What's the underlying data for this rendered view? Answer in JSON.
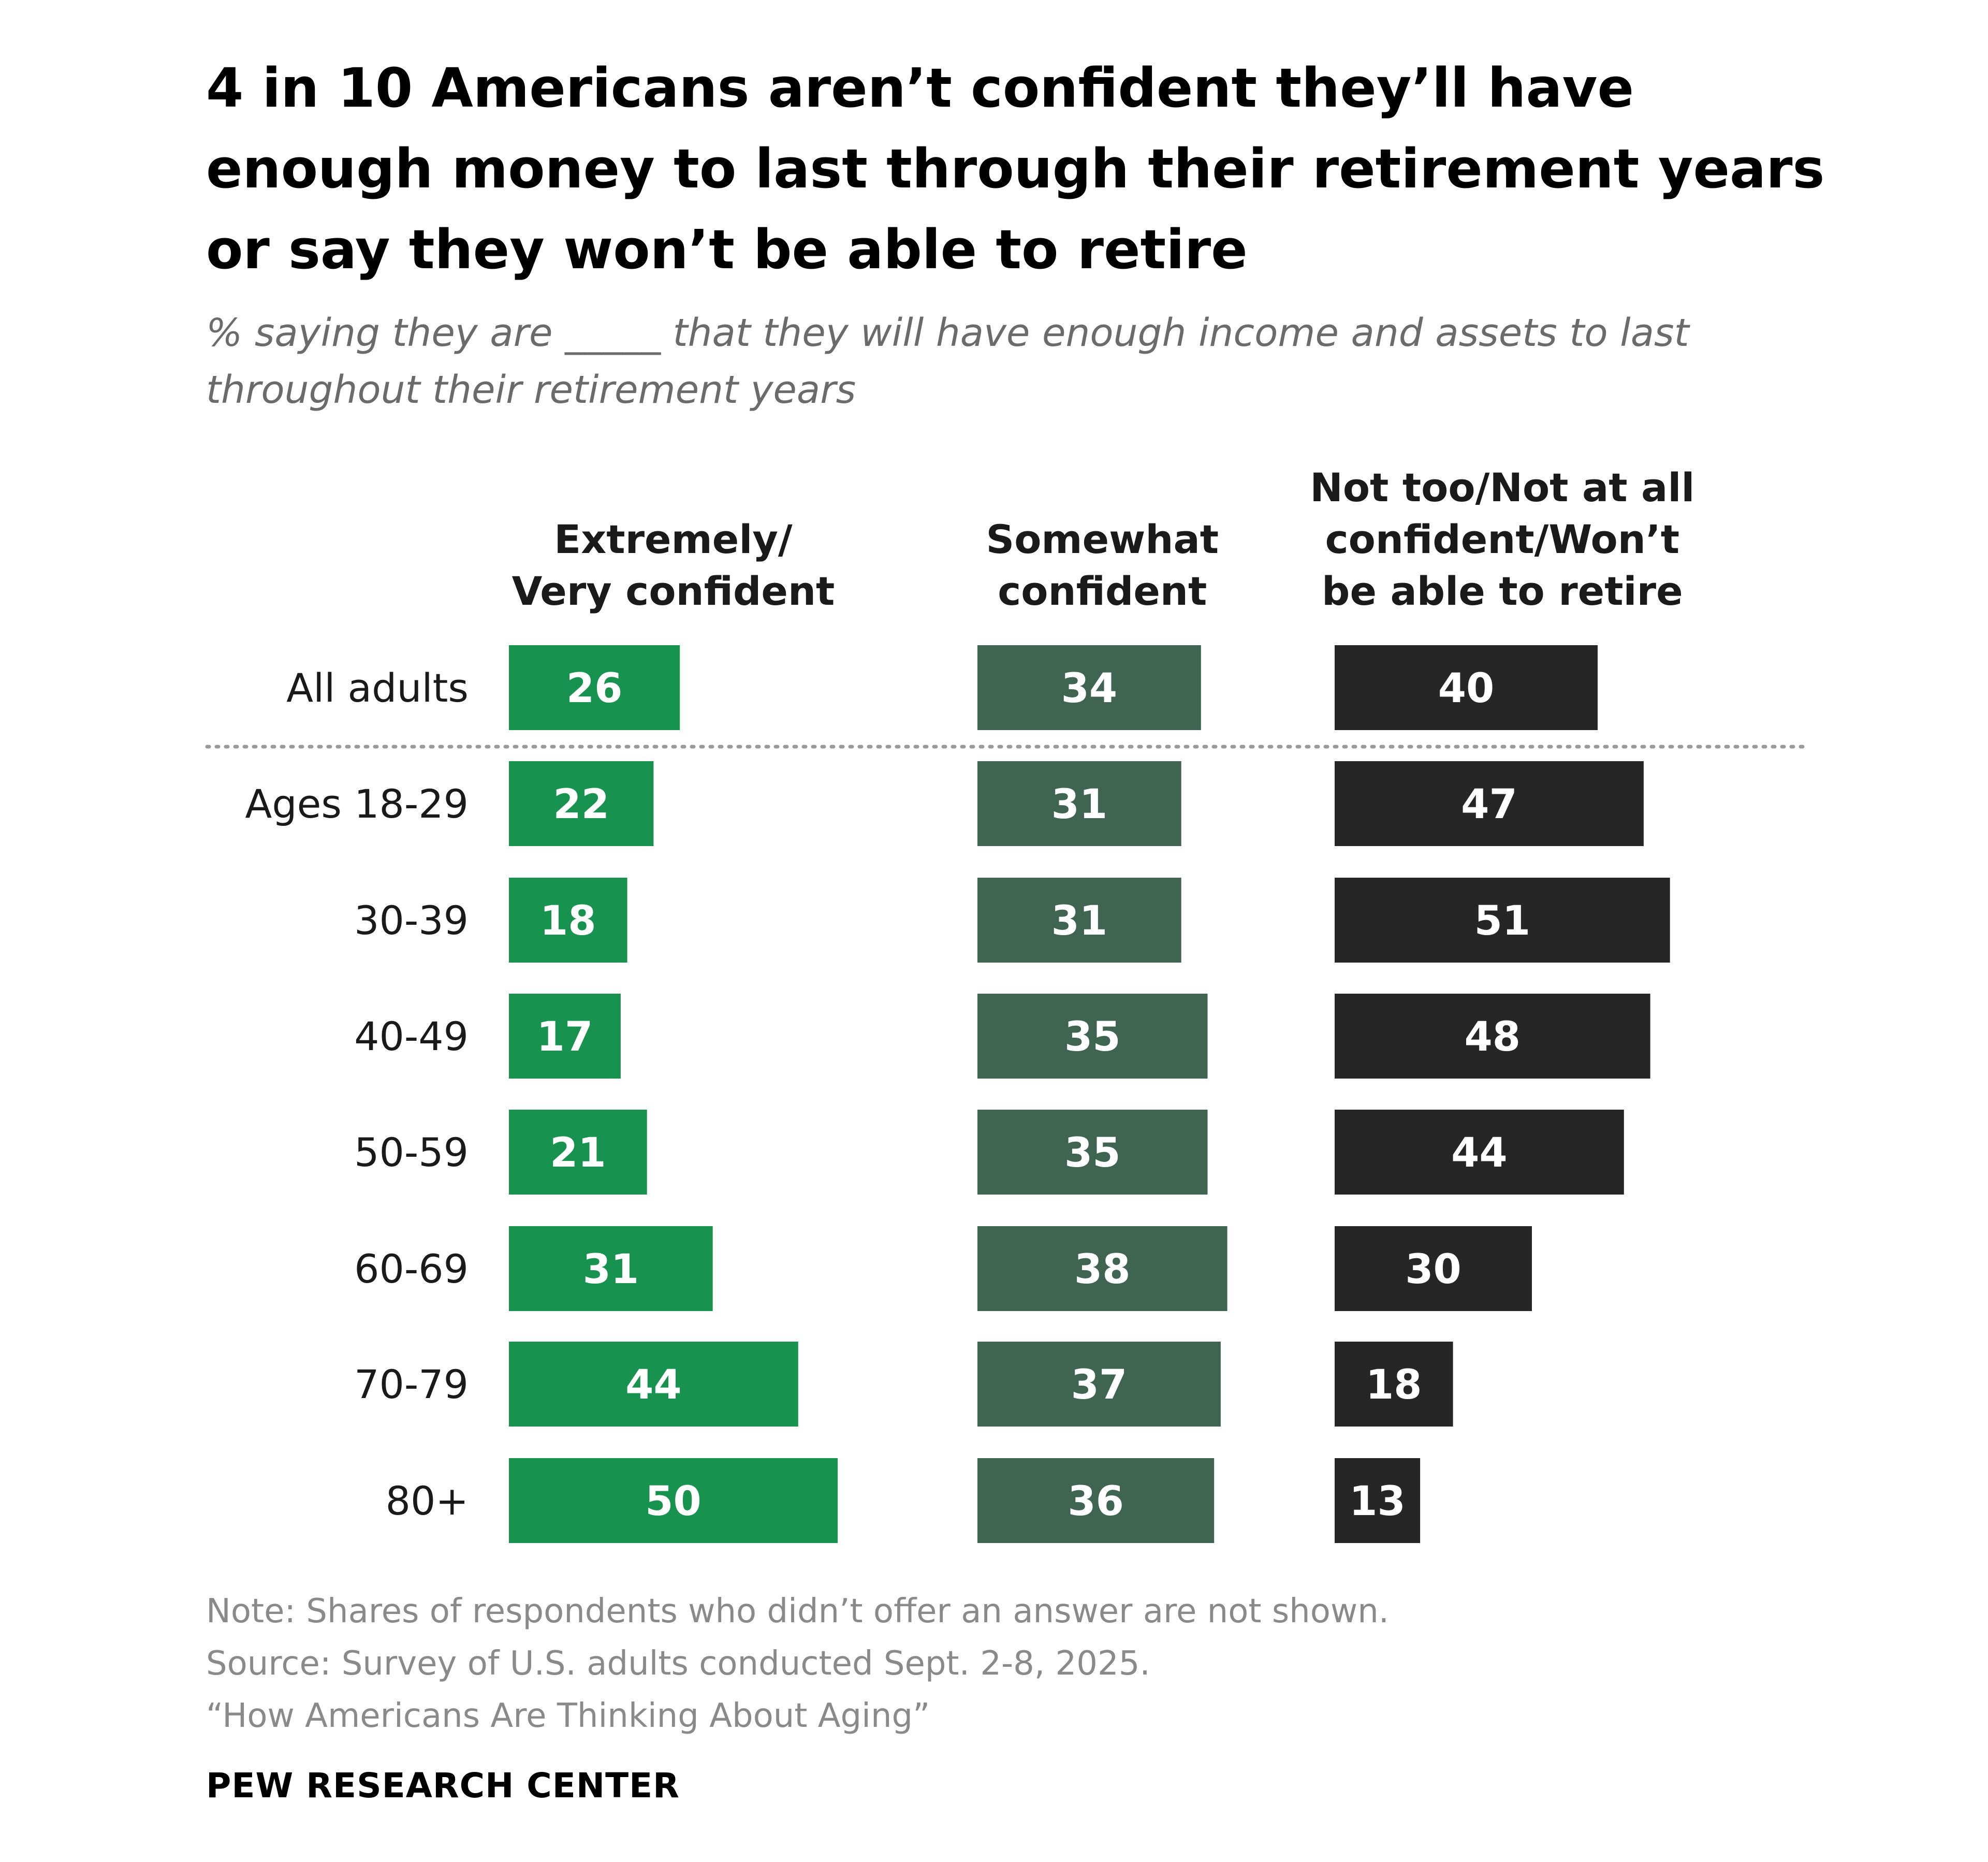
{
  "title": "4 in 10 Americans aren’t confident they’ll have enough money to last through their retirement years or say they won’t be able to retire",
  "subtitle": "% saying they are _____ that they will have enough income and assets to last throughout their retirement years",
  "note": "Note: Shares of respondents who didn’t offer an answer are not shown.",
  "source": "Source: Survey of U.S. adults conducted Sept. 2-8, 2025.",
  "report": "“How Americans Are Thinking About Aging”",
  "brand": "PEW RESEARCH CENTER",
  "chart_data": {
    "type": "bar",
    "orientation": "horizontal",
    "categories": [
      "All adults",
      "Ages 18-29",
      "30-39",
      "40-49",
      "50-59",
      "60-69",
      "70-79",
      "80+"
    ],
    "series": [
      {
        "name": "Extremely/ Very confident",
        "color": "#17934f",
        "values": [
          26,
          22,
          18,
          17,
          21,
          31,
          44,
          50
        ]
      },
      {
        "name": "Somewhat confident",
        "color": "#3f6451",
        "values": [
          34,
          31,
          31,
          35,
          35,
          38,
          37,
          36
        ]
      },
      {
        "name": "Not too/Not at all confident/Won’t be able to retire",
        "color": "#262626",
        "values": [
          40,
          47,
          51,
          48,
          44,
          30,
          18,
          13
        ]
      }
    ],
    "series_header_lines": [
      [
        "Extremely/",
        "Very confident"
      ],
      [
        "Somewhat",
        "confident"
      ],
      [
        "Not too/Not at all",
        "confident/Won’t",
        "be able to retire"
      ]
    ],
    "xlim": [
      0,
      100
    ],
    "data_labels": true,
    "separator_after": "All adults",
    "grid": false,
    "legend": "column headers above bars"
  }
}
